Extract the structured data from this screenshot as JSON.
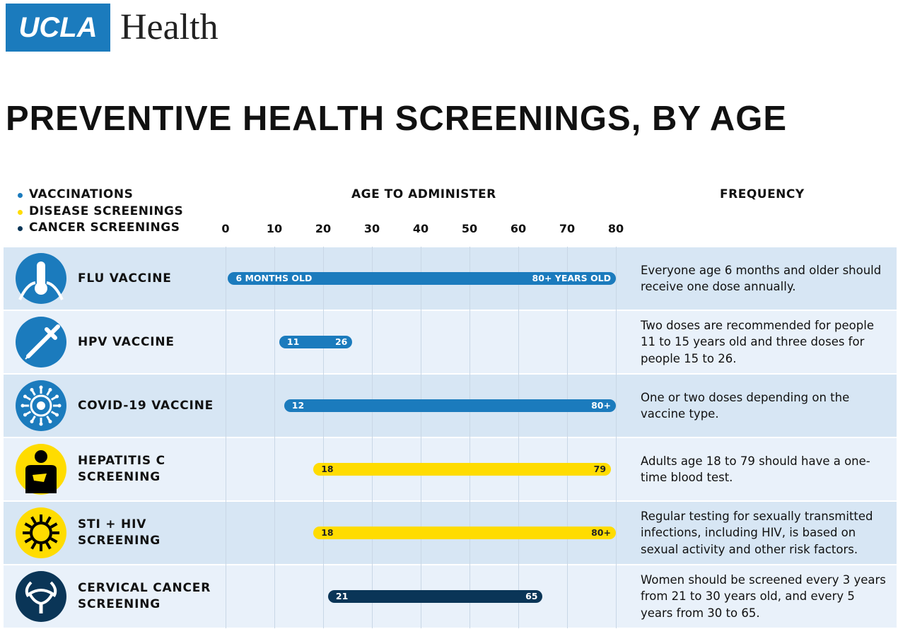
{
  "logo": {
    "mark": "UCLA",
    "word": "Health"
  },
  "chart_data": {
    "type": "range-bar",
    "title": "PREVENTIVE HEALTH SCREENINGS, BY AGE",
    "x_label": "AGE TO ADMINISTER",
    "notes_header": "FREQUENCY",
    "series": [
      {
        "name": "VACCINATIONS",
        "color": "#1b7bbd"
      },
      {
        "name": "DISEASE SCREENINGS",
        "color": "#ffdc00"
      },
      {
        "name": "CANCER SCREENINGS",
        "color": "#0a3557"
      }
    ],
    "categories": [
      "FLU VACCINE",
      "HPV VACCINE",
      "COVID-19 VACCINE",
      "HEPATITIS C SCREENING",
      "STI + HIV SCREENING",
      "CERVICAL CANCER SCREENING"
    ],
    "category_series": [
      0,
      0,
      0,
      1,
      1,
      2
    ],
    "starts": [
      0.5,
      11,
      12,
      18,
      18,
      21
    ],
    "ends": [
      80,
      26,
      80,
      79,
      80,
      65
    ],
    "start_labels": [
      "6 MONTHS OLD",
      "11",
      "12",
      "18",
      "18",
      "21"
    ],
    "end_labels": [
      "80+ YEARS OLD",
      "26",
      "80+",
      "79",
      "80+",
      "65"
    ],
    "notes": [
      "Everyone age 6 months and older should receive one dose annually.",
      "Two doses are recommended for people 11 to 15 years old and three doses for people 15 to 26.",
      "One or two doses depending on the vaccine type.",
      "Adults age 18 to 79 should have a one-time blood test.",
      "Regular testing for sexually transmitted infections, including HIV, is based on sexual activity and other risk factors.",
      "Women should be screened every 3 years from 21 to 30 years old, and every 5 years from 30 to 65."
    ],
    "xlim": [
      0,
      80
    ],
    "xticks": [
      0,
      10,
      20,
      30,
      40,
      50,
      60,
      70,
      80
    ],
    "grid": true
  }
}
